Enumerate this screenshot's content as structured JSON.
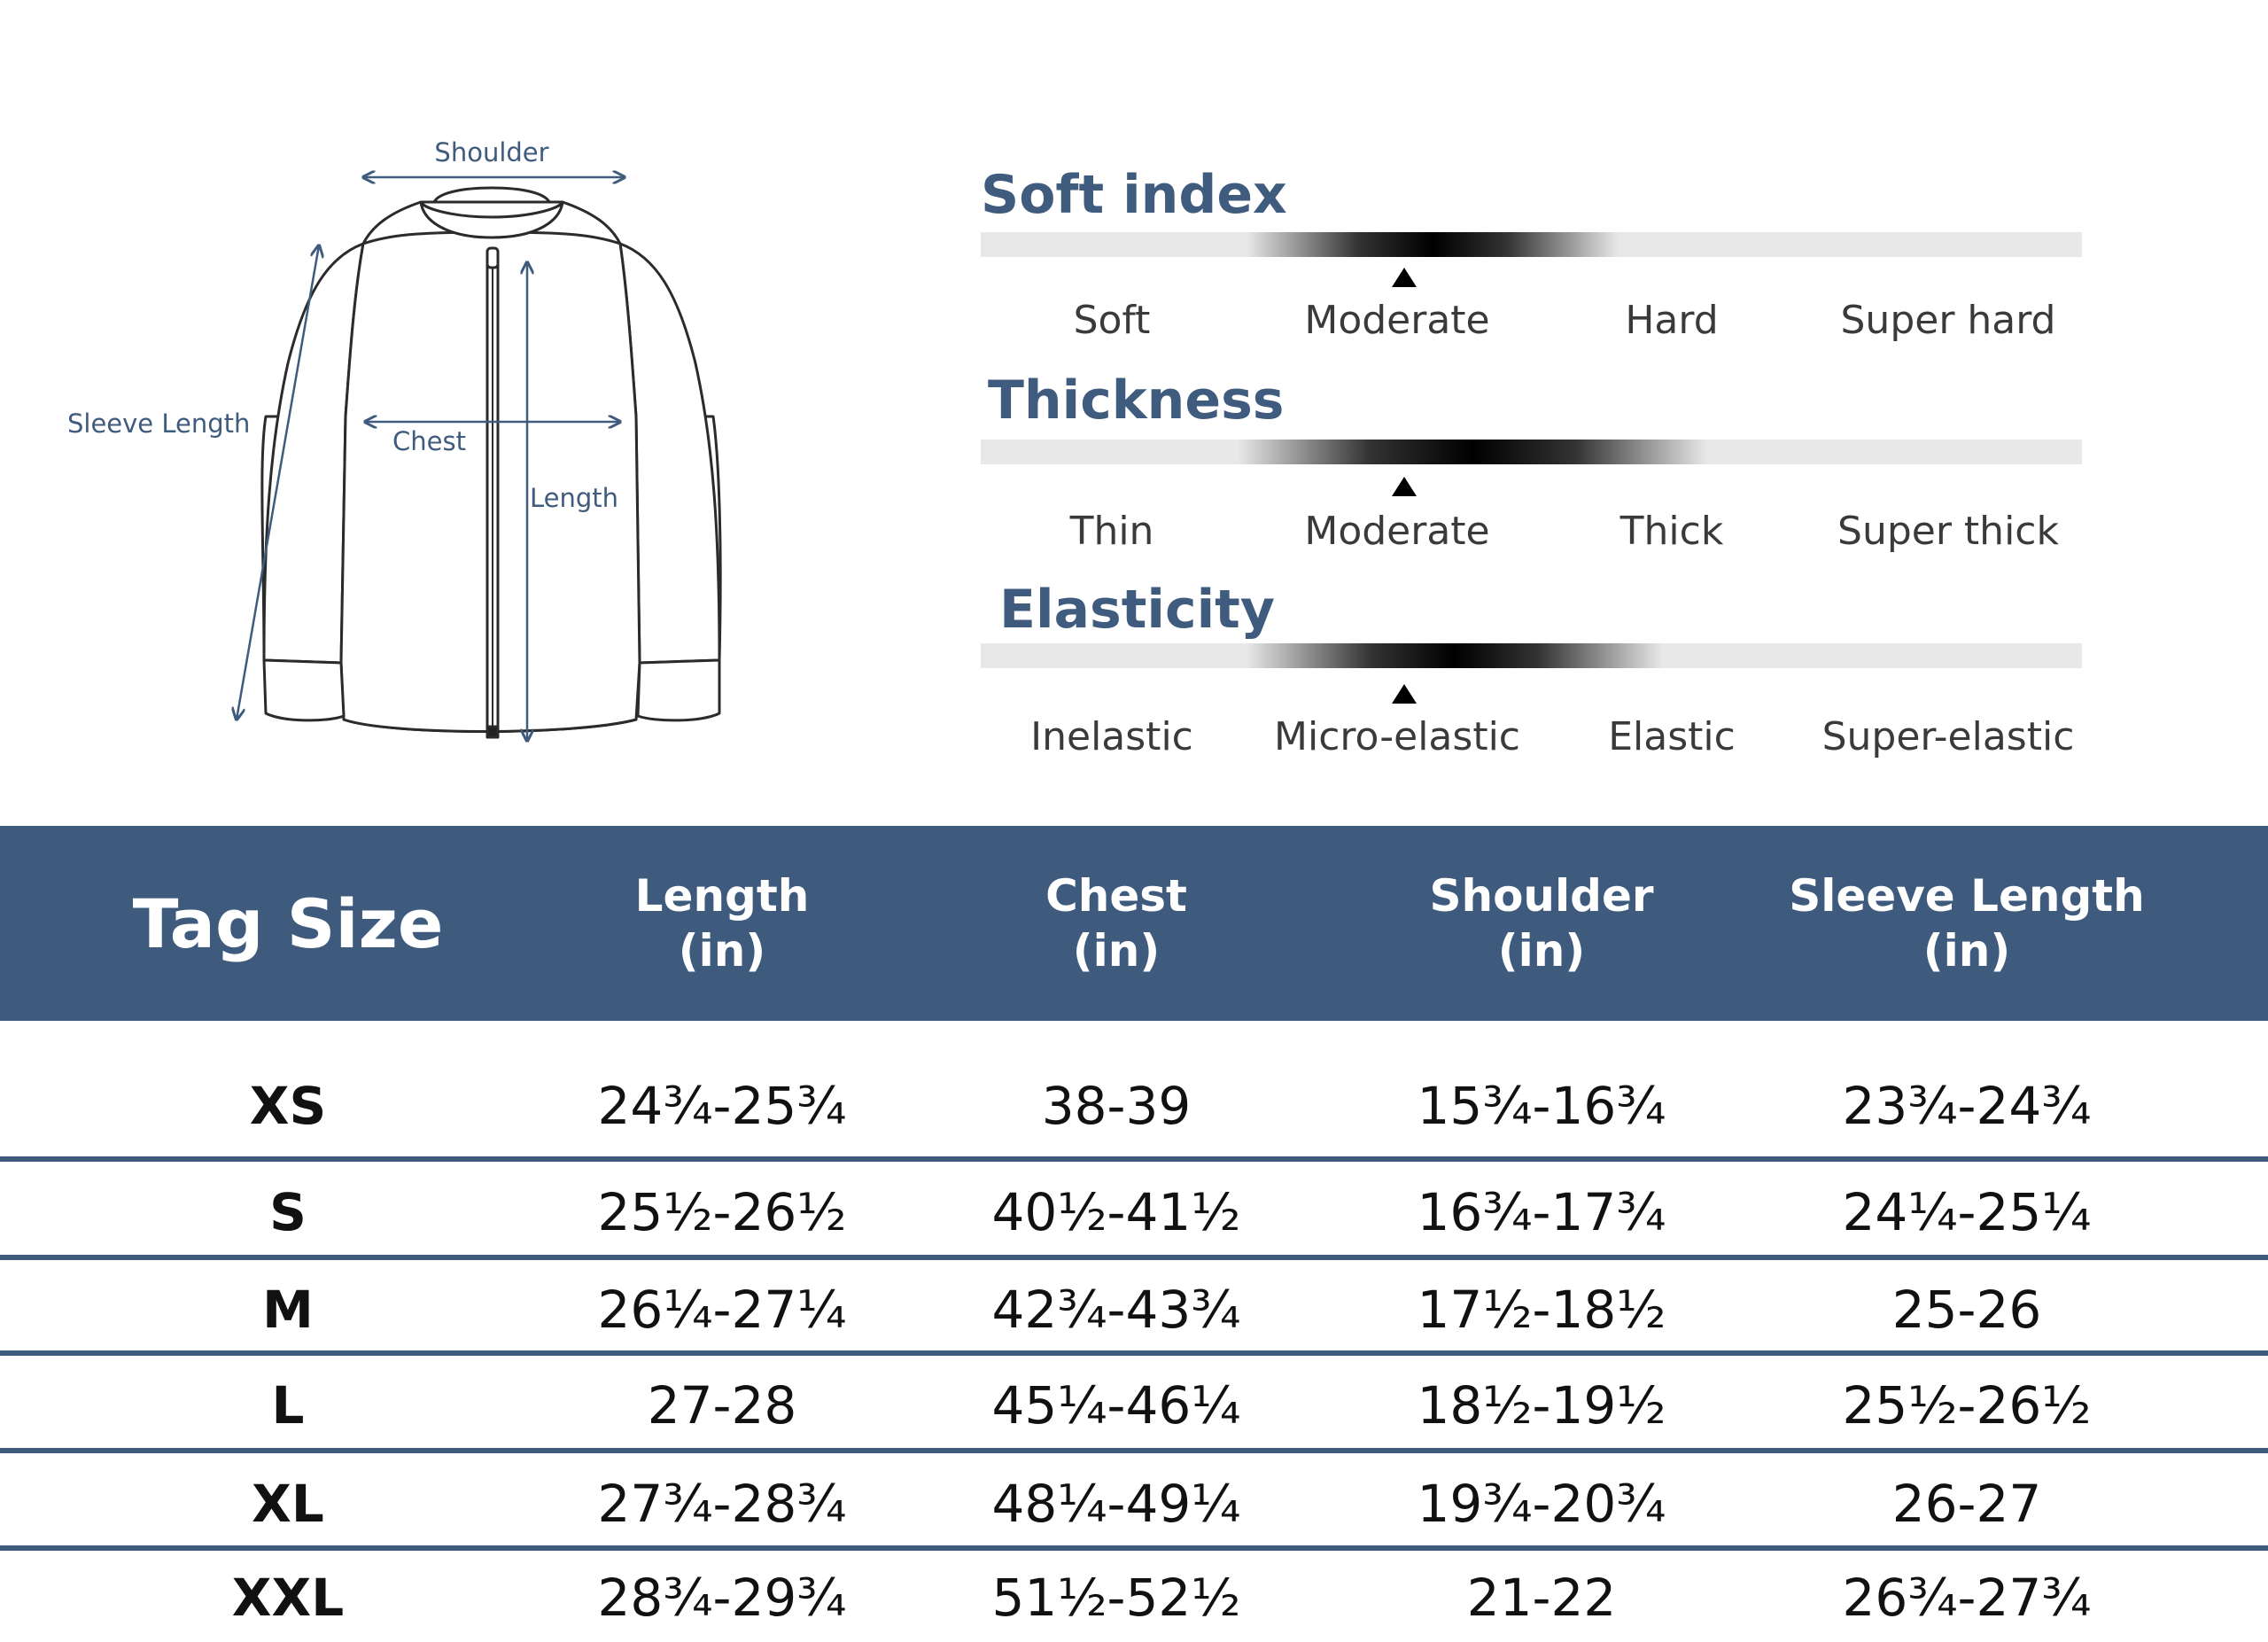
{
  "diagram": {
    "labels": {
      "shoulder": "Shoulder",
      "sleeve_length": "Sleeve Length",
      "chest": "Chest",
      "length": "Length"
    },
    "line_color": "#3f5b7d",
    "icon": "jacket-icon"
  },
  "scales": [
    {
      "title": "Soft index",
      "options": [
        "Soft",
        "Moderate",
        "Hard",
        "Super hard"
      ],
      "selected_index": 1
    },
    {
      "title": "Thickness",
      "options": [
        "Thin",
        "Moderate",
        "Thick",
        "Super thick"
      ],
      "selected_index": 1
    },
    {
      "title": "Elasticity",
      "options": [
        "Inelastic",
        "Micro-elastic",
        "Elastic",
        "Super-elastic"
      ],
      "selected_index": 1
    }
  ],
  "table": {
    "header_color": "#3e5b7e",
    "headers": [
      {
        "line1": "Tag Size"
      },
      {
        "line1": "Length",
        "line2": "(in)"
      },
      {
        "line1": "Chest",
        "line2": "(in)"
      },
      {
        "line1": "Shoulder",
        "line2": "(in)"
      },
      {
        "line1": "Sleeve Length",
        "line2": "(in)"
      }
    ],
    "rows": [
      {
        "size": "XS",
        "length": "24¾-25¾",
        "chest": "38-39",
        "shoulder": "15¾-16¾",
        "sleeve": "23¾-24¾"
      },
      {
        "size": "S",
        "length": "25½-26½",
        "chest": "40½-41½",
        "shoulder": "16¾-17¾",
        "sleeve": "24¼-25¼"
      },
      {
        "size": "M",
        "length": "26¼-27¼",
        "chest": "42¾-43¾",
        "shoulder": "17½-18½",
        "sleeve": "25-26"
      },
      {
        "size": "L",
        "length": "27-28",
        "chest": "45¼-46¼",
        "shoulder": "18½-19½",
        "sleeve": "25½-26½"
      },
      {
        "size": "XL",
        "length": "27¾-28¾",
        "chest": "48¼-49¼",
        "shoulder": "19¾-20¾",
        "sleeve": "26-27"
      },
      {
        "size": "XXL",
        "length": "28¾-29¾",
        "chest": "51½-52½",
        "shoulder": "21-22",
        "sleeve": "26¾-27¾"
      }
    ]
  }
}
